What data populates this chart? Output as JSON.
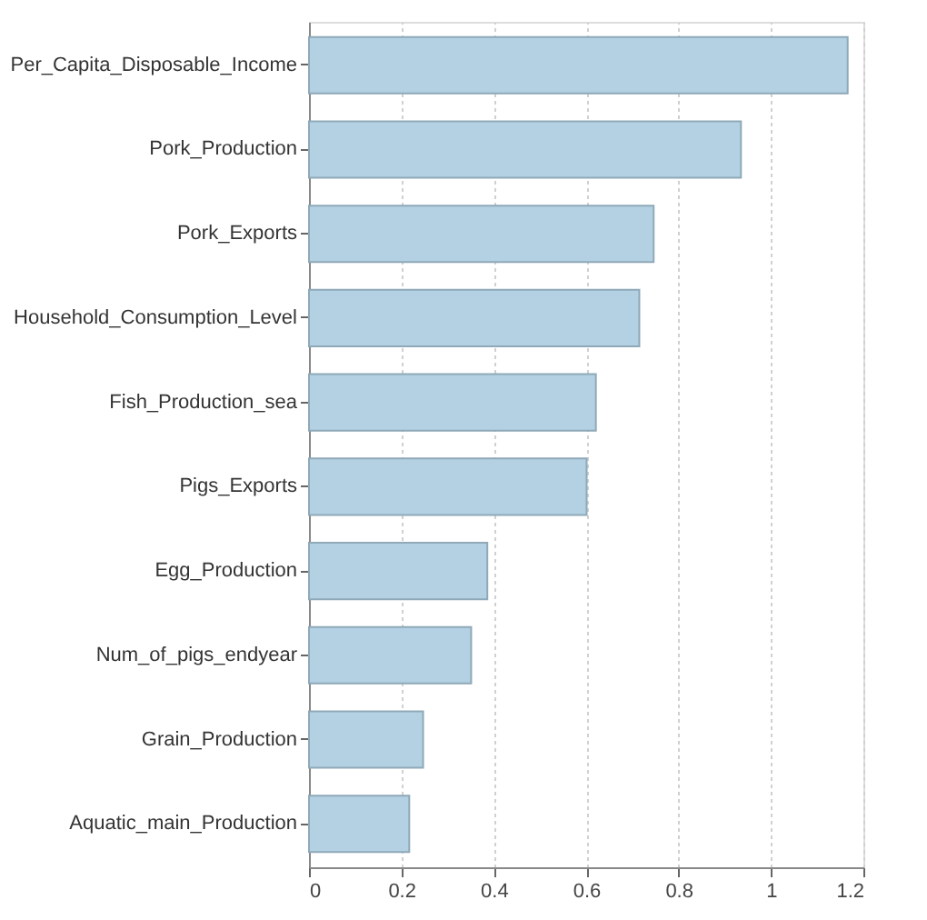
{
  "chart_data": {
    "type": "bar",
    "orientation": "horizontal",
    "categories": [
      "Per_Capita_Disposable_Income",
      "Pork_Production",
      "Pork_Exports",
      "Household_Consumption_Level",
      "Fish_Production_sea",
      "Pigs_Exports",
      "Egg_Production",
      "Num_of_pigs_endyear",
      "Grain_Production",
      "Aquatic_main_Production"
    ],
    "values": [
      1.166,
      0.935,
      0.746,
      0.715,
      0.621,
      0.601,
      0.386,
      0.351,
      0.247,
      0.217
    ],
    "color": "#b3d1e3",
    "xlim": [
      0,
      1.2
    ],
    "xticks": [
      0,
      0.2,
      0.4,
      0.6,
      0.8,
      1,
      1.2
    ],
    "grid": "x"
  }
}
